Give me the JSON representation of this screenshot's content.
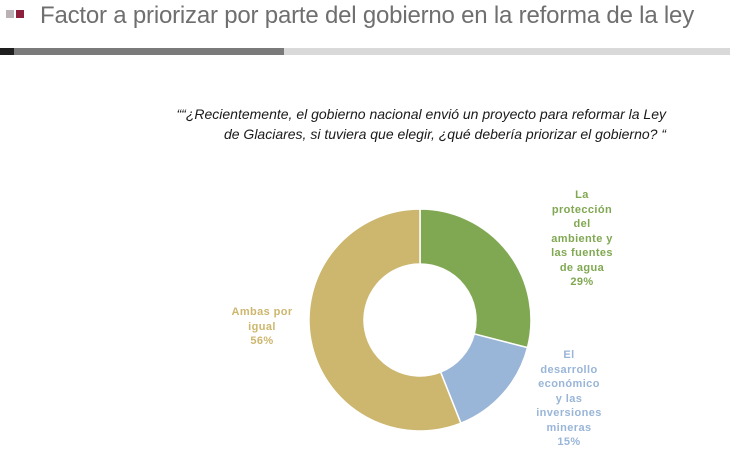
{
  "header": {
    "title": "Factor a priorizar por parte del gobierno en la reforma de la ley"
  },
  "question": {
    "line1": "““¿Recientemente, el gobierno nacional envió un proyecto para reformar la Ley",
    "line2": "de Glaciares, si tuviera que elegir, ¿qué debería priorizar el gobierno? “"
  },
  "chart_data": {
    "type": "pie",
    "variant": "donut",
    "title": "",
    "slices": [
      {
        "label_lines": [
          "La",
          "protección",
          "del",
          "ambiente y",
          "las fuentes",
          "de agua"
        ],
        "value_label": "29%",
        "value": 29,
        "color": "#80a852"
      },
      {
        "label_lines": [
          "El",
          "desarrollo",
          "económico",
          "y las",
          "inversiones",
          "mineras"
        ],
        "value_label": "15%",
        "value": 15,
        "color": "#99b5d8"
      },
      {
        "label_lines": [
          "Ambas por",
          "igual"
        ],
        "value_label": "56%",
        "value": 56,
        "color": "#cdb66d"
      }
    ]
  }
}
